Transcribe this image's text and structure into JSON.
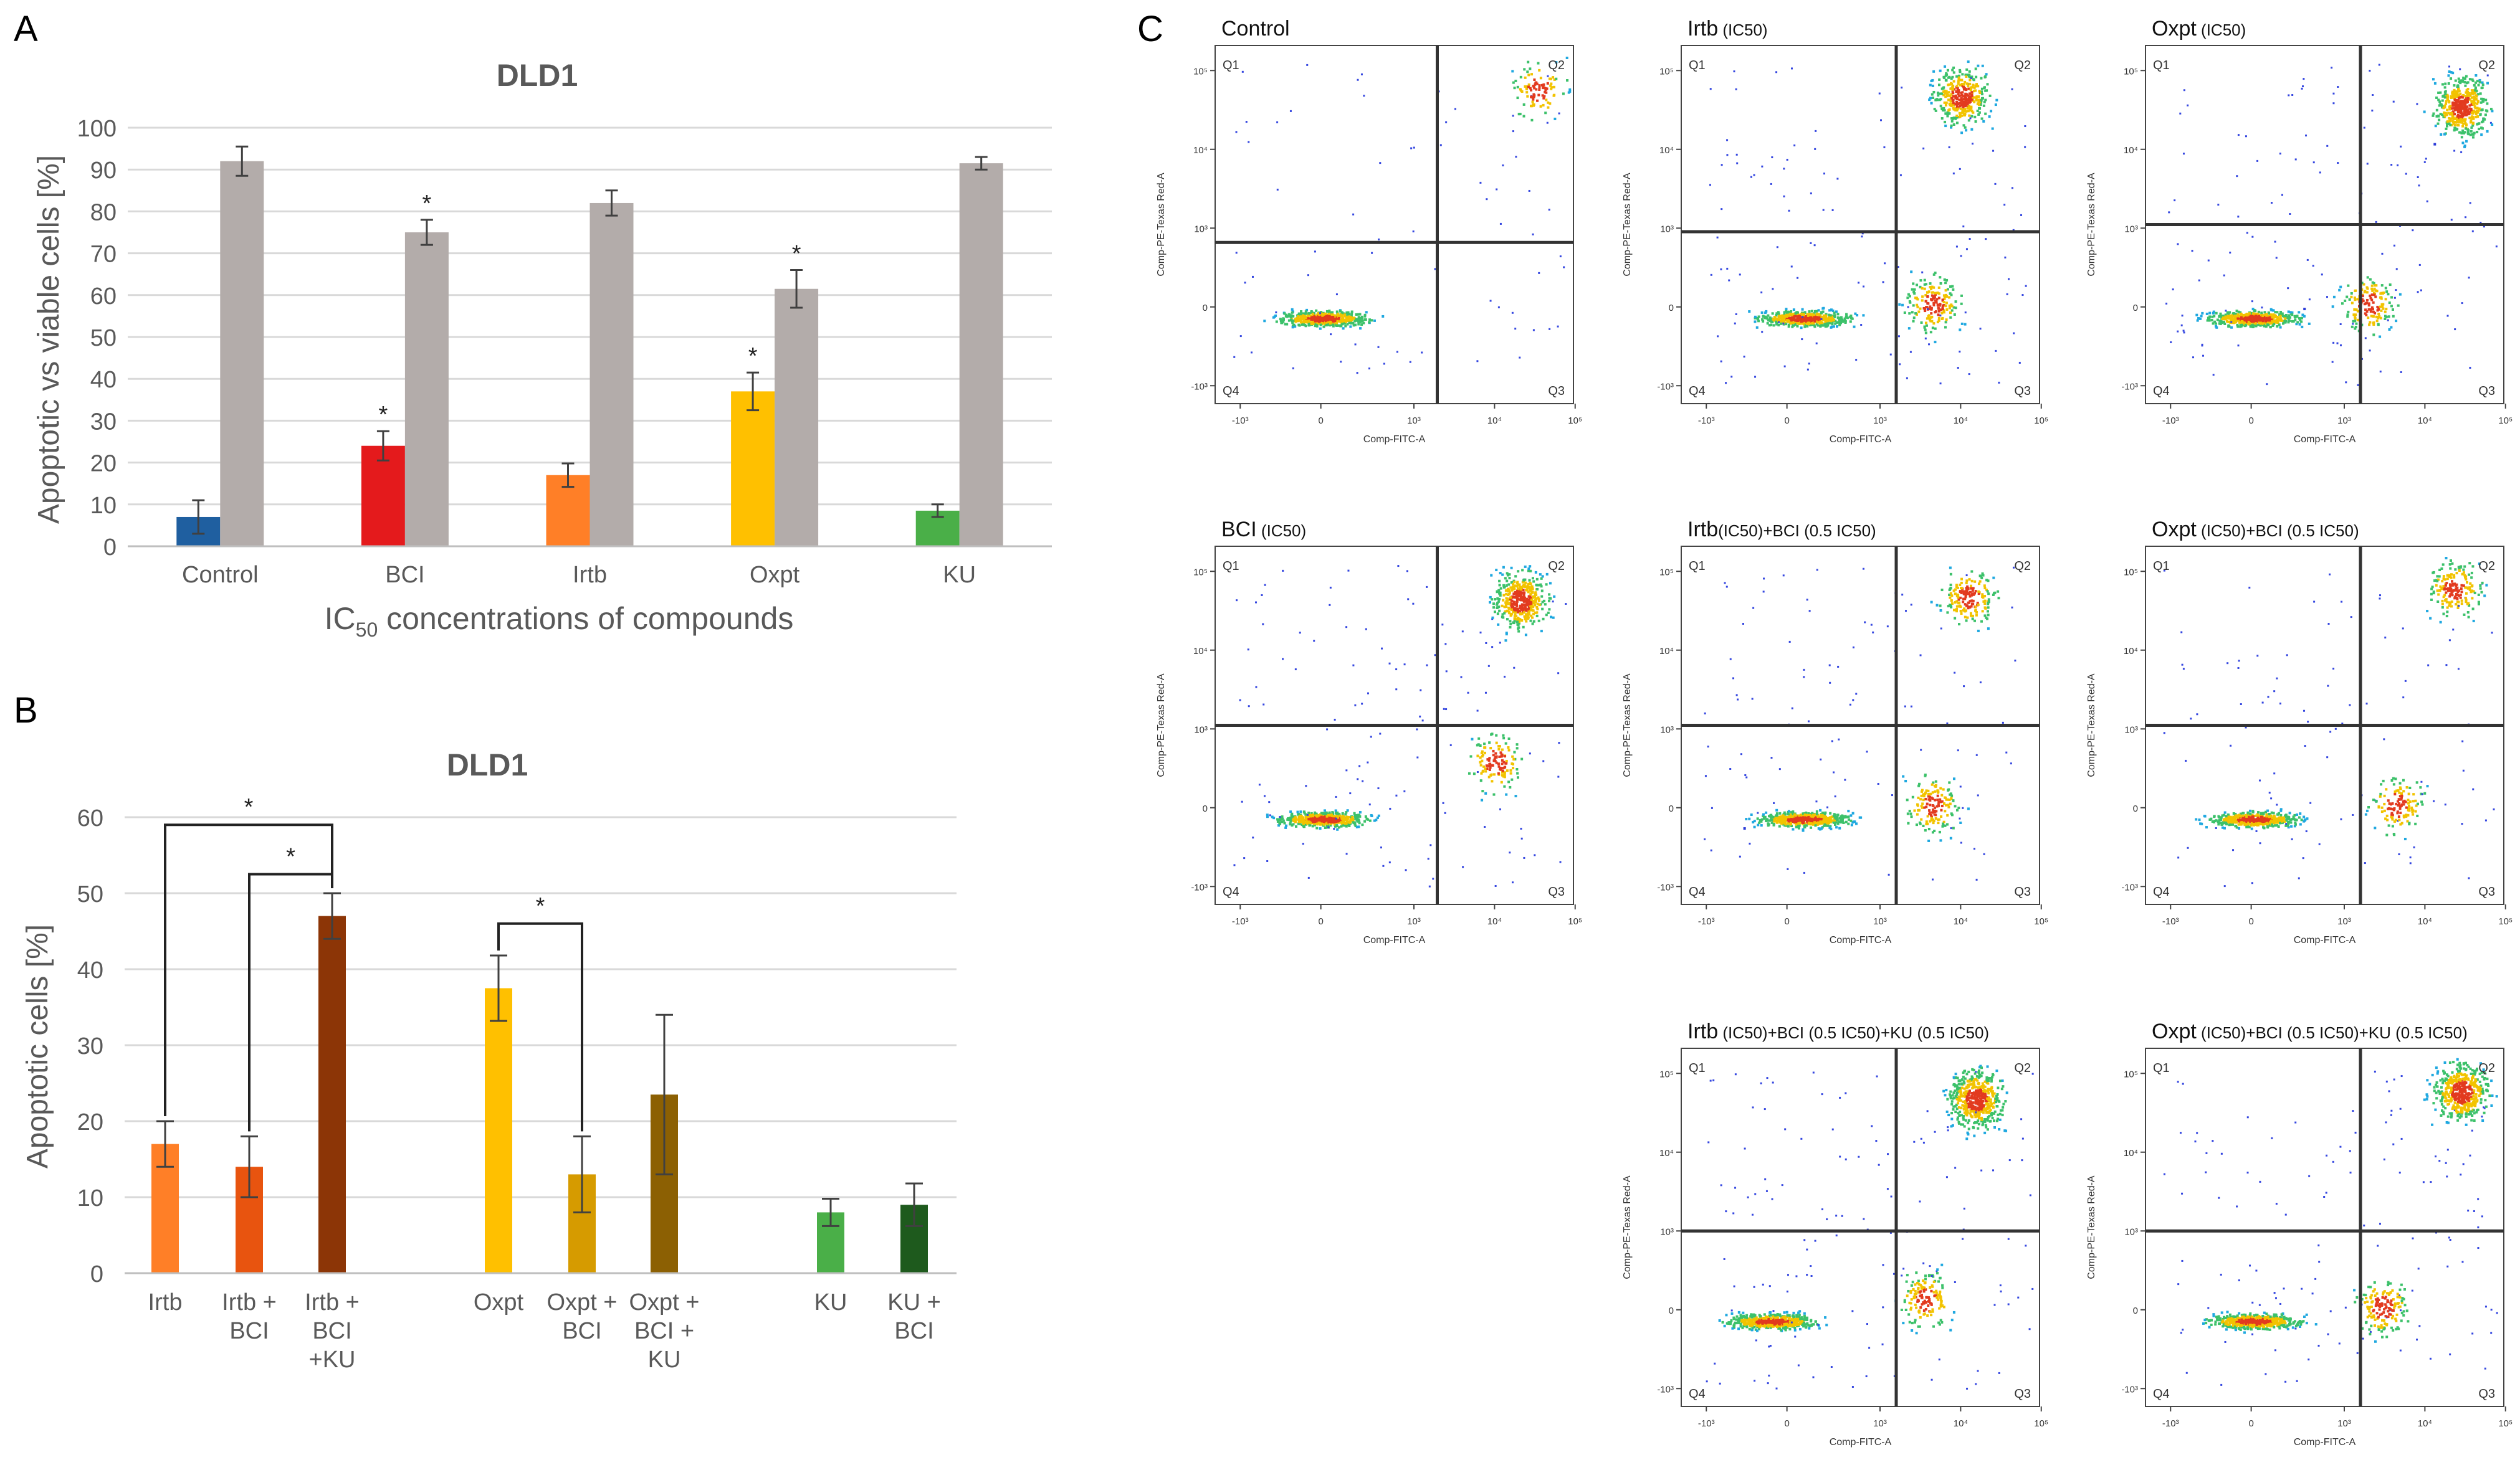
{
  "figure": {
    "panel_labels": [
      "A",
      "B",
      "C"
    ]
  },
  "chart_data": [
    {
      "panel": "A",
      "type": "bar",
      "title": "DLD1",
      "ylabel": "Apoptotic vs viable cells [%]",
      "xlabel_main": "IC",
      "xlabel_sub": "50",
      "xlabel_rest": " concentrations  of compounds",
      "ylim": [
        0,
        100
      ],
      "yticks": [
        0,
        10,
        20,
        30,
        40,
        50,
        60,
        70,
        80,
        90,
        100
      ],
      "categories": [
        "Control",
        "BCI",
        "Irtb",
        "Oxpt",
        "KU"
      ],
      "series": [
        {
          "name": "Apoptotic",
          "values": [
            7,
            24,
            17,
            37,
            8.5
          ],
          "errors": [
            4,
            3.5,
            2.8,
            4.5,
            1.5
          ],
          "colors": [
            "#1f5fa0",
            "#e41a1c",
            "#ff7f27",
            "#ffc000",
            "#4aaf48"
          ],
          "significant": [
            false,
            true,
            false,
            true,
            false
          ]
        },
        {
          "name": "Viable",
          "values": [
            92,
            75,
            82,
            61.5,
            91.5
          ],
          "errors": [
            3.5,
            3,
            3,
            4.5,
            1.5
          ],
          "colors": [
            "#b3acaa",
            "#b3acaa",
            "#b3acaa",
            "#b3acaa",
            "#b3acaa"
          ],
          "significant": [
            false,
            true,
            false,
            true,
            false
          ]
        }
      ],
      "sig_mark": "*"
    },
    {
      "panel": "B",
      "type": "bar",
      "title": "DLD1",
      "ylabel": "Apoptotic cells [%]",
      "ylim": [
        0,
        60
      ],
      "yticks": [
        0,
        10,
        20,
        30,
        40,
        50,
        60
      ],
      "bars": [
        {
          "label": [
            "Irtb"
          ],
          "value": 17,
          "error": 3,
          "color": "#ff7f27"
        },
        {
          "label": [
            "Irtb +",
            "BCI"
          ],
          "value": 14,
          "error": 4,
          "color": "#e8540f"
        },
        {
          "label": [
            "Irtb +",
            "BCI",
            "+KU"
          ],
          "value": 47,
          "error": 3,
          "color": "#8c3506"
        },
        {
          "label": [
            "Oxpt"
          ],
          "value": 37.5,
          "error": 4.3,
          "color": "#ffc000"
        },
        {
          "label": [
            "Oxpt +",
            "BCI"
          ],
          "value": 13,
          "error": 5,
          "color": "#d69b00"
        },
        {
          "label": [
            "Oxpt +",
            "BCI +",
            "KU"
          ],
          "value": 23.5,
          "error": 10.5,
          "color": "#8c6003"
        },
        {
          "label": [
            "KU"
          ],
          "value": 8,
          "error": 1.8,
          "color": "#4aaf48"
        },
        {
          "label": [
            "KU +",
            "BCI"
          ],
          "value": 9,
          "error": 2.8,
          "color": "#1e5a1d"
        }
      ],
      "brackets": [
        {
          "from": 0,
          "to": 2,
          "height": 59,
          "mark": "*"
        },
        {
          "from": 1,
          "to": 2,
          "height": 52.5,
          "mark": "*"
        },
        {
          "from": 3,
          "to": 4,
          "height": 46,
          "mark": "*"
        }
      ]
    }
  ],
  "flow_panels": [
    {
      "title": "Control",
      "sub": ""
    },
    {
      "title": "Irtb",
      "sub": " (IC50)"
    },
    {
      "title": "Oxpt",
      "sub": " (IC50)"
    },
    {
      "title": "BCI",
      "sub": " (IC50)"
    },
    {
      "title": "Irtb",
      "sub": "(IC50)+BCI (0.5 IC50)"
    },
    {
      "title": "Oxpt",
      "sub": " (IC50)+BCI (0.5 IC50)"
    },
    {
      "title": "Irtb",
      "sub": " (IC50)+BCI (0.5 IC50)+KU (0.5 IC50)"
    },
    {
      "title": "Oxpt",
      "sub": " (IC50)+BCI (0.5 IC50)+KU (0.5 IC50)"
    }
  ],
  "flow_axes": {
    "x_label": "Comp-FITC-A",
    "y_label": "Comp-PE-Texas Red-A",
    "quadrants": [
      "Q1",
      "Q2",
      "Q3",
      "Q4"
    ],
    "x_ticks": [
      "-10³",
      "0",
      "10³",
      "10⁴",
      "10⁵"
    ],
    "y_ticks": [
      "10⁵",
      "10⁴",
      "10³",
      "0",
      "-10³"
    ]
  }
}
